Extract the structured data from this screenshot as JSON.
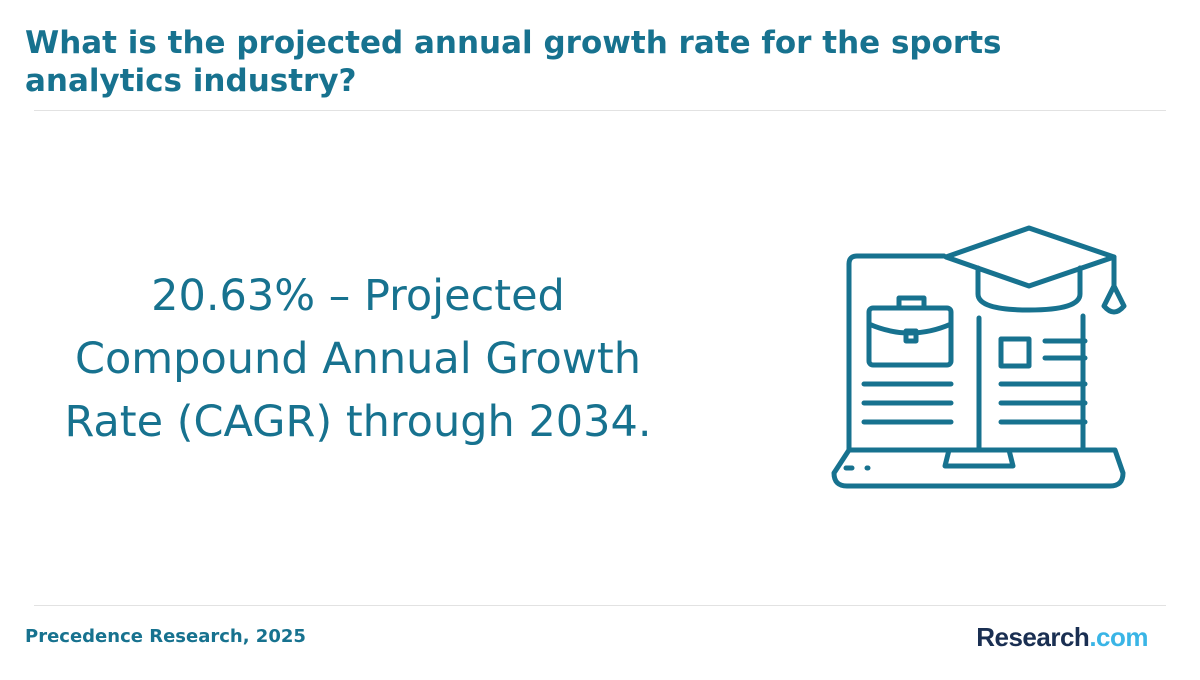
{
  "header": {
    "title": "What is the projected annual growth rate for the sports analytics industry?"
  },
  "main": {
    "stat_text": "20.63% – Projected Compound Annual Growth Rate (CAGR) through 2034.",
    "illustration_icon": "laptop-graduation-cap-icon"
  },
  "footer": {
    "source": "Precedence Research, 2025",
    "logo_main": "Research",
    "logo_tld": ".com"
  },
  "colors": {
    "accent": "#17728f",
    "logo_dark": "#1a2f52",
    "logo_light": "#3ab5e6",
    "divider": "#e2e2e2"
  }
}
